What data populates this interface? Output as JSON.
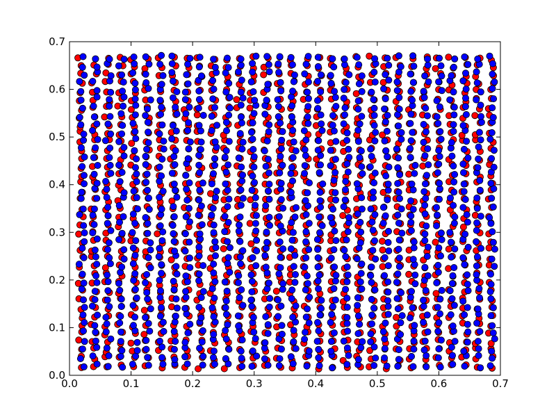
{
  "chart_data": {
    "type": "scatter",
    "title": "",
    "xlabel": "",
    "ylabel": "",
    "xlim": [
      0.0,
      0.7
    ],
    "ylim": [
      0.0,
      0.7
    ],
    "grid": false,
    "legend": "none",
    "x_ticks": [
      "0.0",
      "0.1",
      "0.2",
      "0.3",
      "0.4",
      "0.5",
      "0.6",
      "0.7"
    ],
    "y_ticks": [
      "0.0",
      "0.1",
      "0.2",
      "0.3",
      "0.4",
      "0.5",
      "0.6",
      "0.7"
    ],
    "series": [
      {
        "color": "#ff0000",
        "edgecolor": "#000000",
        "description": "Red points roughly on a jittered lattice over the unit region; a mirrored copy of the blue layout.",
        "grid_x_start": 0.018,
        "grid_x_step": 0.0215,
        "grid_x_count": 32,
        "grid_y_start": 0.018,
        "grid_y_step": 0.0175,
        "grid_y_count": 38,
        "jitter": 0.0045
      },
      {
        "color": "#0000ff",
        "edgecolor": "#000000",
        "description": "Blue points on a jittered lattice covering x 0.02–0.69, y 0.02–0.69.",
        "grid_x_start": 0.02,
        "grid_x_step": 0.0215,
        "grid_x_count": 32,
        "grid_y_start": 0.02,
        "grid_y_step": 0.0175,
        "grid_y_count": 38,
        "jitter": 0.0045
      }
    ]
  }
}
